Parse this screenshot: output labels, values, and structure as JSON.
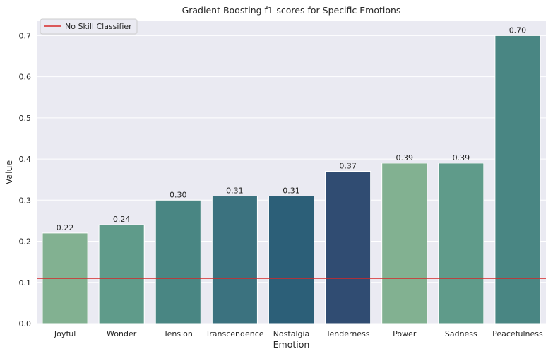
{
  "chart_data": {
    "type": "bar",
    "title": "Gradient Boosting f1-scores for Specific Emotions",
    "xlabel": "Emotion",
    "ylabel": "Value",
    "ylim": [
      0,
      0.735
    ],
    "yticks": [
      "0.0",
      "0.1",
      "0.2",
      "0.3",
      "0.4",
      "0.5",
      "0.6",
      "0.7"
    ],
    "ytick_values": [
      0,
      0.1,
      0.2,
      0.3,
      0.4,
      0.5,
      0.6,
      0.7
    ],
    "grid": true,
    "legend_position": "top-left",
    "categories": [
      "Joyful",
      "Wonder",
      "Tension",
      "Transcendence",
      "Nostalgia",
      "Tenderness",
      "Power",
      "Sadness",
      "Peacefulness"
    ],
    "values": [
      0.22,
      0.24,
      0.3,
      0.31,
      0.31,
      0.37,
      0.39,
      0.39,
      0.7
    ],
    "value_labels": [
      "0.22",
      "0.24",
      "0.30",
      "0.31",
      "0.31",
      "0.37",
      "0.39",
      "0.39",
      "0.70"
    ],
    "bar_colors": [
      "#82b191",
      "#5f9b8a",
      "#498683",
      "#3b727f",
      "#2c5f78",
      "#304c72",
      "#82b191",
      "#5f9b8a",
      "#498683"
    ],
    "reference_line": {
      "label": "No Skill Classifier",
      "value": 0.11,
      "color": "#d62728"
    },
    "background_color": "#eaeaf2"
  }
}
